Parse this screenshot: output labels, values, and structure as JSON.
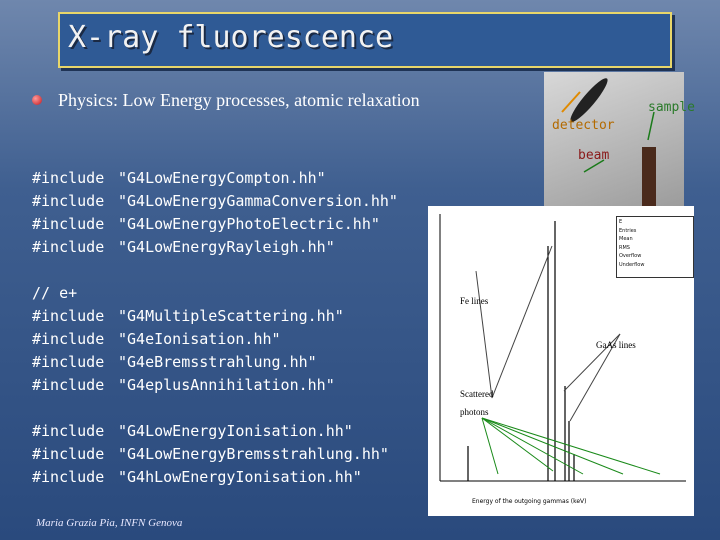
{
  "slide": {
    "title": "X-ray fluorescence",
    "subtitle": "Physics: Low Energy processes, atomic relaxation",
    "footer": "Maria Grazia Pia, INFN Genova"
  },
  "code_blocks": [
    {
      "lines": [
        {
          "kw": "#include",
          "arg": "\"G4LowEnergyCompton.hh\""
        },
        {
          "kw": "#include",
          "arg": "\"G4LowEnergyGammaConversion.hh\""
        },
        {
          "kw": "#include",
          "arg": "\"G4LowEnergyPhotoElectric.hh\""
        },
        {
          "kw": "#include",
          "arg": "\"G4LowEnergyRayleigh.hh\""
        }
      ]
    },
    {
      "lines": [
        {
          "kw": "// e+",
          "arg": ""
        },
        {
          "kw": "#include",
          "arg": "\"G4MultipleScattering.hh\""
        },
        {
          "kw": "#include",
          "arg": "\"G4eIonisation.hh\""
        },
        {
          "kw": "#include",
          "arg": "\"G4eBremsstrahlung.hh\""
        },
        {
          "kw": "#include",
          "arg": "\"G4eplusAnnihilation.hh\""
        }
      ]
    },
    {
      "lines": [
        {
          "kw": "#include",
          "arg": "\"G4LowEnergyIonisation.hh\""
        },
        {
          "kw": "#include",
          "arg": "\"G4LowEnergyBremsstrahlung.hh\""
        },
        {
          "kw": "#include",
          "arg": "\"G4hLowEnergyIonisation.hh\""
        }
      ]
    }
  ],
  "setup_figure": {
    "detector": "detector",
    "sample": "sample",
    "beam": "beam"
  },
  "spectrum_plot": {
    "stats": [
      "E",
      "Entries",
      "Mean",
      "RMS",
      "Overflow",
      "Underflow"
    ],
    "xlabel": "Energy of the outgoing gammas (keV)",
    "annotations": {
      "fe": "Fe lines",
      "gaas": "GaAs lines",
      "scattered": "Scattered",
      "photons": "photons"
    }
  },
  "colors": {
    "title_bg": "#2f5a95",
    "title_border": "#e8d66a",
    "bullet": "#c0141b"
  }
}
